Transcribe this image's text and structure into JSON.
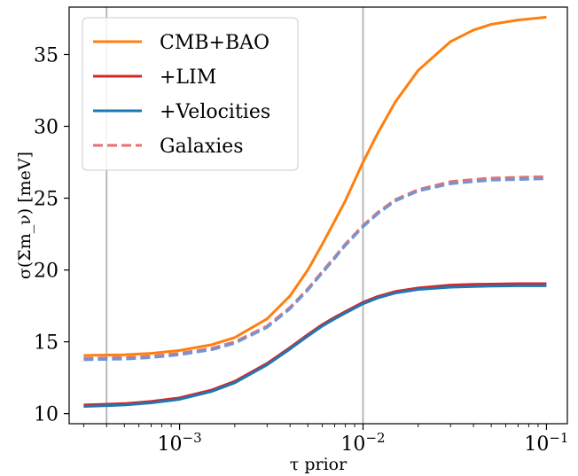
{
  "chart_data": {
    "type": "line",
    "xscale": "log",
    "xlabel": "τ prior",
    "ylabel": "σ(Σm_ν) [meV]",
    "xlim": [
      0.00025,
      0.13
    ],
    "ylim": [
      9.3,
      38.3
    ],
    "x_ticks": [
      {
        "value": 0.001,
        "base": "10",
        "exp": "−3"
      },
      {
        "value": 0.01,
        "base": "10",
        "exp": "−2"
      },
      {
        "value": 0.1,
        "base": "10",
        "exp": "−1"
      }
    ],
    "y_ticks": [
      {
        "value": 10,
        "label": "10"
      },
      {
        "value": 15,
        "label": "15"
      },
      {
        "value": 20,
        "label": "20"
      },
      {
        "value": 25,
        "label": "25"
      },
      {
        "value": 30,
        "label": "30"
      },
      {
        "value": 35,
        "label": "35"
      }
    ],
    "vlines": [
      0.0004,
      0.01
    ],
    "legend_position": "upper-left",
    "series": [
      {
        "name": "CMB+BAO",
        "color": "#ff7f0e",
        "dash": "solid",
        "x": [
          0.0003,
          0.0005,
          0.0007,
          0.001,
          0.0015,
          0.002,
          0.003,
          0.004,
          0.005,
          0.006,
          0.007,
          0.008,
          0.01,
          0.012,
          0.015,
          0.02,
          0.03,
          0.04,
          0.05,
          0.07,
          0.1
        ],
        "y": [
          14.05,
          14.1,
          14.2,
          14.4,
          14.8,
          15.3,
          16.6,
          18.2,
          20.0,
          21.8,
          23.4,
          24.8,
          27.5,
          29.5,
          31.7,
          33.9,
          35.9,
          36.7,
          37.1,
          37.4,
          37.6
        ]
      },
      {
        "name": "+LIM",
        "color": "#d62728",
        "dash": "solid",
        "x": [
          0.0003,
          0.0005,
          0.0007,
          0.001,
          0.0015,
          0.002,
          0.003,
          0.004,
          0.005,
          0.006,
          0.007,
          0.008,
          0.01,
          0.012,
          0.015,
          0.02,
          0.03,
          0.04,
          0.05,
          0.07,
          0.1
        ],
        "y": [
          10.6,
          10.7,
          10.85,
          11.1,
          11.65,
          12.25,
          13.5,
          14.6,
          15.5,
          16.2,
          16.7,
          17.1,
          17.75,
          18.15,
          18.5,
          18.75,
          18.95,
          19.0,
          19.02,
          19.05,
          19.05
        ]
      },
      {
        "name": "+Velocities",
        "color": "#1f77b4",
        "dash": "solid",
        "x": [
          0.0003,
          0.0005,
          0.0007,
          0.001,
          0.0015,
          0.002,
          0.003,
          0.004,
          0.005,
          0.006,
          0.007,
          0.008,
          0.01,
          0.012,
          0.015,
          0.02,
          0.03,
          0.04,
          0.05,
          0.07,
          0.1
        ],
        "y": [
          10.5,
          10.6,
          10.75,
          11.0,
          11.55,
          12.15,
          13.4,
          14.5,
          15.4,
          16.1,
          16.6,
          17.0,
          17.65,
          18.05,
          18.4,
          18.65,
          18.8,
          18.85,
          18.88,
          18.9,
          18.9
        ]
      },
      {
        "name": "Galaxies",
        "color": "#e6706e",
        "dash": "dashed",
        "x": [
          0.0003,
          0.0005,
          0.0007,
          0.001,
          0.0015,
          0.002,
          0.003,
          0.004,
          0.005,
          0.006,
          0.007,
          0.008,
          0.01,
          0.012,
          0.015,
          0.02,
          0.03,
          0.04,
          0.05,
          0.07,
          0.1
        ],
        "y": [
          13.85,
          13.9,
          14.0,
          14.2,
          14.55,
          15.0,
          16.1,
          17.4,
          18.7,
          19.9,
          20.9,
          21.8,
          23.1,
          24.0,
          24.9,
          25.6,
          26.15,
          26.3,
          26.4,
          26.45,
          26.5
        ]
      },
      {
        "name": "",
        "color": "#6f96d8",
        "dash": "dashed",
        "x": [
          0.0003,
          0.0005,
          0.0007,
          0.001,
          0.0015,
          0.002,
          0.003,
          0.004,
          0.005,
          0.006,
          0.007,
          0.008,
          0.01,
          0.012,
          0.015,
          0.02,
          0.03,
          0.04,
          0.05,
          0.07,
          0.1
        ],
        "y": [
          13.75,
          13.8,
          13.9,
          14.1,
          14.45,
          14.9,
          16.0,
          17.3,
          18.6,
          19.8,
          20.8,
          21.7,
          23.0,
          23.9,
          24.8,
          25.5,
          26.0,
          26.15,
          26.25,
          26.3,
          26.35
        ]
      }
    ]
  }
}
